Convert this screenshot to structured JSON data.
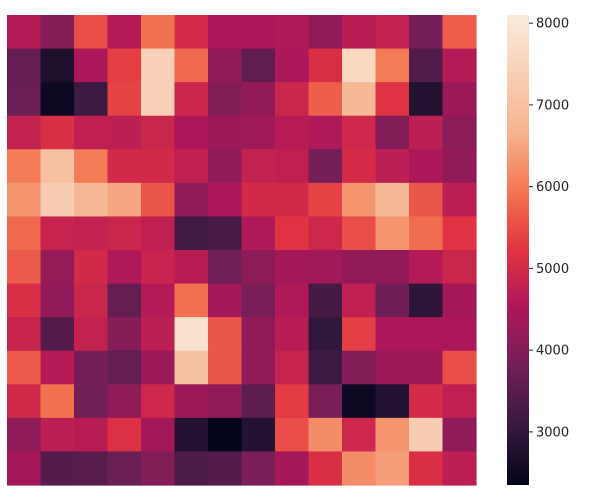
{
  "chart_data": {
    "type": "heatmap",
    "title": "",
    "xlabel": "",
    "ylabel": "",
    "rows": 14,
    "cols": 14,
    "values": [
      [
        4600,
        4050,
        5500,
        4600,
        5900,
        5050,
        4500,
        4500,
        4550,
        4200,
        4650,
        4800,
        3850,
        5700
      ],
      [
        3650,
        2750,
        4500,
        5350,
        7400,
        5800,
        4200,
        3600,
        4500,
        5100,
        7600,
        6000,
        3400,
        4600
      ],
      [
        3700,
        2500,
        3150,
        5400,
        7400,
        4900,
        4000,
        4200,
        4900,
        5700,
        6800,
        5200,
        2800,
        4300
      ],
      [
        4800,
        5100,
        4750,
        4700,
        4900,
        4500,
        4300,
        4350,
        4650,
        4550,
        4950,
        4000,
        4700,
        4100
      ],
      [
        6000,
        7000,
        6000,
        5000,
        5000,
        4750,
        4150,
        4800,
        4750,
        3850,
        5050,
        4700,
        4500,
        4200
      ],
      [
        6300,
        7300,
        6800,
        6500,
        5600,
        4200,
        4500,
        5000,
        5000,
        5400,
        6300,
        6800,
        5600,
        4700
      ],
      [
        5800,
        4850,
        4800,
        4900,
        4750,
        3200,
        3300,
        4550,
        5200,
        4950,
        5500,
        6300,
        5850,
        5200
      ],
      [
        5650,
        4250,
        5000,
        4550,
        4850,
        4650,
        3800,
        4100,
        4400,
        4350,
        4200,
        4200,
        4600,
        4900
      ],
      [
        5100,
        4200,
        4900,
        3650,
        4600,
        5900,
        4400,
        3900,
        4550,
        3250,
        4750,
        3750,
        2950,
        4400
      ],
      [
        4850,
        3450,
        4800,
        4050,
        4700,
        7800,
        5600,
        4200,
        4650,
        3000,
        5350,
        4500,
        4500,
        4500
      ],
      [
        5650,
        4600,
        3850,
        3650,
        4300,
        7000,
        5600,
        4200,
        4850,
        3150,
        4000,
        4300,
        4300,
        5500
      ],
      [
        5000,
        5900,
        3800,
        4150,
        4950,
        4300,
        4200,
        3550,
        5300,
        3900,
        2500,
        2800,
        5050,
        4750
      ],
      [
        4150,
        4700,
        4650,
        5150,
        4400,
        2800,
        2350,
        2800,
        5500,
        6200,
        4950,
        6300,
        7300,
        4150
      ],
      [
        4400,
        3450,
        3500,
        3700,
        4000,
        3350,
        3450,
        3900,
        4400,
        5100,
        6200,
        6400,
        5100,
        4700
      ]
    ],
    "vmin": 2350,
    "vmax": 8100,
    "colorscale": "rocket",
    "colorbar_ticks": [
      3000,
      4000,
      5000,
      6000,
      7000,
      8000
    ],
    "colorbar_tick_labels": [
      "3000",
      "4000",
      "5000",
      "6000",
      "7000",
      "8000"
    ],
    "grid": false
  }
}
